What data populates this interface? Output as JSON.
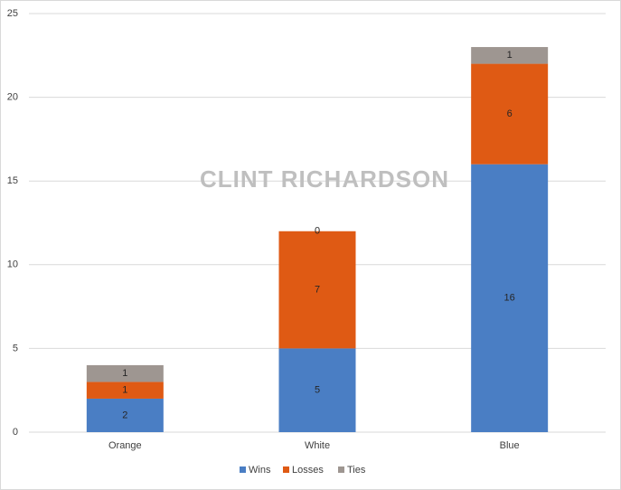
{
  "chart_data": {
    "type": "stacked_bar",
    "annotation": "CLINT RICHARDSON",
    "categories": [
      "Orange",
      "White",
      "Blue"
    ],
    "series": [
      {
        "name": "Wins",
        "color": "#4a7ec4",
        "values": [
          2,
          5,
          16
        ]
      },
      {
        "name": "Losses",
        "color": "#df5a14",
        "values": [
          1,
          7,
          6
        ]
      },
      {
        "name": "Ties",
        "color": "#9e9691",
        "values": [
          1,
          0,
          1
        ]
      }
    ],
    "ylim": [
      0,
      25
    ],
    "yticks": [
      0,
      5,
      10,
      15,
      20,
      25
    ],
    "grid": true,
    "legend": "bottom"
  }
}
